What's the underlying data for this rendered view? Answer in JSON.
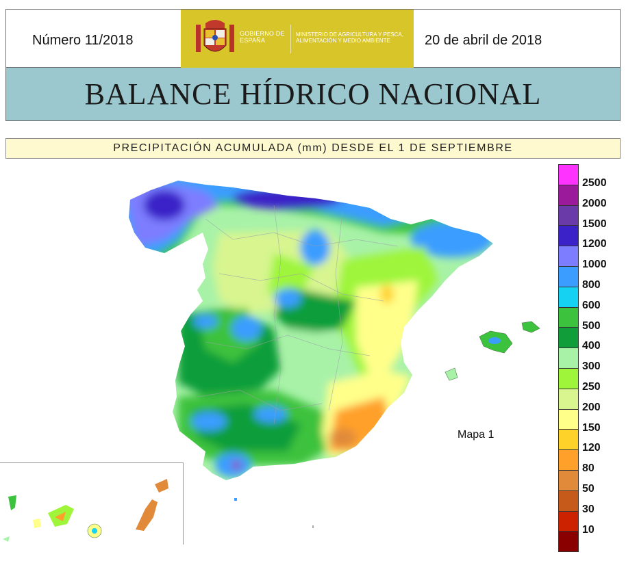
{
  "header": {
    "issue": "Número 11/2018",
    "date": "20 de abril de 2018",
    "gobierno": "GOBIERNO DE ESPAÑA",
    "ministerio": "MINISTERIO DE AGRICULTURA Y PESCA, ALIMENTACIÓN Y MEDIO AMBIENTE",
    "brand_color": "#d8c52a"
  },
  "title": "BALANCE HÍDRICO NACIONAL",
  "subtitle": "PRECIPITACIÓN ACUMULADA (mm) DESDE EL 1 DE SEPTIEMBRE",
  "map": {
    "label": "Mapa 1",
    "legend": [
      {
        "value": "2500",
        "color": "#ff33ff"
      },
      {
        "value": "2000",
        "color": "#9b1a9b"
      },
      {
        "value": "1500",
        "color": "#6a3aa8"
      },
      {
        "value": "1200",
        "color": "#3a22c8"
      },
      {
        "value": "1000",
        "color": "#7d7dff"
      },
      {
        "value": "800",
        "color": "#3a9dff"
      },
      {
        "value": "600",
        "color": "#16d2f2"
      },
      {
        "value": "500",
        "color": "#3cc23c"
      },
      {
        "value": "400",
        "color": "#119e3a"
      },
      {
        "value": "300",
        "color": "#a8f2a8"
      },
      {
        "value": "250",
        "color": "#9ef53a"
      },
      {
        "value": "200",
        "color": "#d8f590"
      },
      {
        "value": "150",
        "color": "#ffff8a"
      },
      {
        "value": "120",
        "color": "#ffd22a"
      },
      {
        "value": "80",
        "color": "#ffa02a"
      },
      {
        "value": "50",
        "color": "#e08a3a"
      },
      {
        "value": "30",
        "color": "#c65a1a"
      },
      {
        "value": "10",
        "color": "#cc2200"
      },
      {
        "value": "",
        "color": "#8a0000"
      }
    ]
  }
}
